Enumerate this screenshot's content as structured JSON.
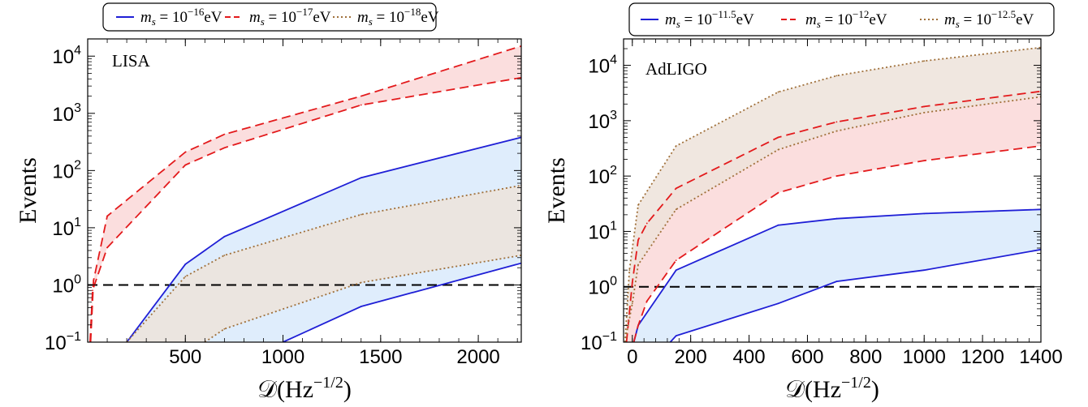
{
  "chart_data": [
    {
      "type": "line",
      "panel_label": "LISA",
      "xlabel": "𝒟(Hz",
      "xlabel_exp": "−1/2",
      "xlabel_close": ")",
      "ylabel": "Events",
      "xlim": [
        0,
        2220
      ],
      "ylim": [
        0.1,
        20000
      ],
      "yscale": "log",
      "xticks": [
        500,
        1000,
        1500,
        2000
      ],
      "yticks": [
        {
          "value": 0.1,
          "base": "10",
          "exp": "−1"
        },
        {
          "value": 1,
          "base": "10",
          "exp": "0"
        },
        {
          "value": 10,
          "base": "10",
          "exp": "1"
        },
        {
          "value": 100,
          "base": "10",
          "exp": "2"
        },
        {
          "value": 1000,
          "base": "10",
          "exp": "3"
        },
        {
          "value": 10000,
          "base": "10",
          "exp": "4"
        }
      ],
      "threshold": 1,
      "legend_position": "top",
      "series": [
        {
          "label_prefix": "m",
          "label_sub": "s",
          "label_mid": " = 10",
          "label_exp": "−16",
          "label_unit": "eV",
          "color": "#1f1fd6",
          "fill": "#d9eafb",
          "style": "solid",
          "upper": {
            "x": [
              200,
              500,
              700,
              1400,
              2220
            ],
            "y": [
              0.1,
              2.3,
              7,
              75,
              380
            ]
          },
          "lower": {
            "x": [
              1000,
              1400,
              2220
            ],
            "y": [
              0.1,
              0.42,
              2.4
            ]
          }
        },
        {
          "label_prefix": "m",
          "label_sub": "s",
          "label_mid": " = 10",
          "label_exp": "−17",
          "label_unit": "eV",
          "color": "#e31a1c",
          "fill": "#fad8d8",
          "style": "dashed",
          "upper": {
            "x": [
              15,
              30,
              100,
              500,
              700,
              1400,
              2220
            ],
            "y": [
              0.1,
              1.2,
              16,
              210,
              430,
              2000,
              15000
            ]
          },
          "lower": {
            "x": [
              12,
              25,
              100,
              500,
              700,
              1400,
              2220
            ],
            "y": [
              0.1,
              0.8,
              4.5,
              125,
              250,
              1400,
              4200
            ]
          }
        },
        {
          "label_prefix": "m",
          "label_sub": "s",
          "label_mid": " = 10",
          "label_exp": "−18",
          "label_unit": "eV",
          "color": "#a0703a",
          "fill": "#ede3db",
          "style": "dotted",
          "upper": {
            "x": [
              200,
              500,
              700,
              1400,
              2220
            ],
            "y": [
              0.1,
              1.4,
              3.3,
              17,
              55
            ]
          },
          "lower": {
            "x": [
              600,
              700,
              1400,
              2220
            ],
            "y": [
              0.1,
              0.17,
              1.1,
              3.3
            ]
          }
        }
      ]
    },
    {
      "type": "line",
      "panel_label": "AdLIGO",
      "xlabel": "𝒟(Hz",
      "xlabel_exp": "−1/2",
      "xlabel_close": ")",
      "ylabel": "Events",
      "xlim": [
        -30,
        1400
      ],
      "ylim": [
        0.1,
        30000
      ],
      "yscale": "log",
      "xticks": [
        0,
        200,
        400,
        600,
        800,
        1000,
        1200,
        1400
      ],
      "yticks": [
        {
          "value": 0.1,
          "base": "10",
          "exp": "−1"
        },
        {
          "value": 1,
          "base": "10",
          "exp": "0"
        },
        {
          "value": 10,
          "base": "10",
          "exp": "1"
        },
        {
          "value": 100,
          "base": "10",
          "exp": "2"
        },
        {
          "value": 1000,
          "base": "10",
          "exp": "3"
        },
        {
          "value": 10000,
          "base": "10",
          "exp": "4"
        }
      ],
      "threshold": 1,
      "legend_position": "top",
      "series": [
        {
          "label_prefix": "m",
          "label_sub": "s",
          "label_mid": " = 10",
          "label_exp": "−11.5",
          "label_unit": "eV",
          "color": "#1f1fd6",
          "fill": "#d9eafb",
          "style": "solid",
          "upper": {
            "x": [
              5,
              20,
              150,
              500,
              700,
              1000,
              1400
            ],
            "y": [
              0.1,
              0.2,
              2,
              13,
              17,
              21,
              25
            ]
          },
          "lower": {
            "x": [
              130,
              150,
              500,
              700,
              1000,
              1400
            ],
            "y": [
              0.1,
              0.13,
              0.5,
              1.25,
              2,
              4.7
            ]
          }
        },
        {
          "label_prefix": "m",
          "label_sub": "s",
          "label_mid": " = 10",
          "label_exp": "−12",
          "label_unit": "eV",
          "color": "#e31a1c",
          "fill": "#fad8d8",
          "style": "dashed",
          "upper": {
            "x": [
              -20,
              0,
              20,
              50,
              150,
              500,
              700,
              1000,
              1400
            ],
            "y": [
              0.1,
              1.2,
              7,
              14,
              60,
              500,
              950,
              1800,
              3400
            ]
          },
          "lower": {
            "x": [
              5,
              20,
              50,
              150,
              500,
              700,
              1000,
              1400
            ],
            "y": [
              0.1,
              0.2,
              0.55,
              3,
              50,
              100,
              190,
              350
            ]
          }
        },
        {
          "label_prefix": "m",
          "label_sub": "s",
          "label_mid": " = 10",
          "label_exp": "−12.5",
          "label_unit": "eV",
          "color": "#a0703a",
          "fill": "#ede3db",
          "style": "dotted",
          "upper": {
            "x": [
              -25,
              -10,
              20,
              150,
              500,
              700,
              1000,
              1400
            ],
            "y": [
              0.1,
              2,
              30,
              350,
              3300,
              6500,
              12000,
              21000
            ]
          },
          "lower": {
            "x": [
              -25,
              0,
              20,
              150,
              500,
              700,
              1000,
              1400
            ],
            "y": [
              0.1,
              0.5,
              2.5,
              25,
              300,
              650,
              1400,
              2700
            ]
          }
        }
      ]
    }
  ]
}
